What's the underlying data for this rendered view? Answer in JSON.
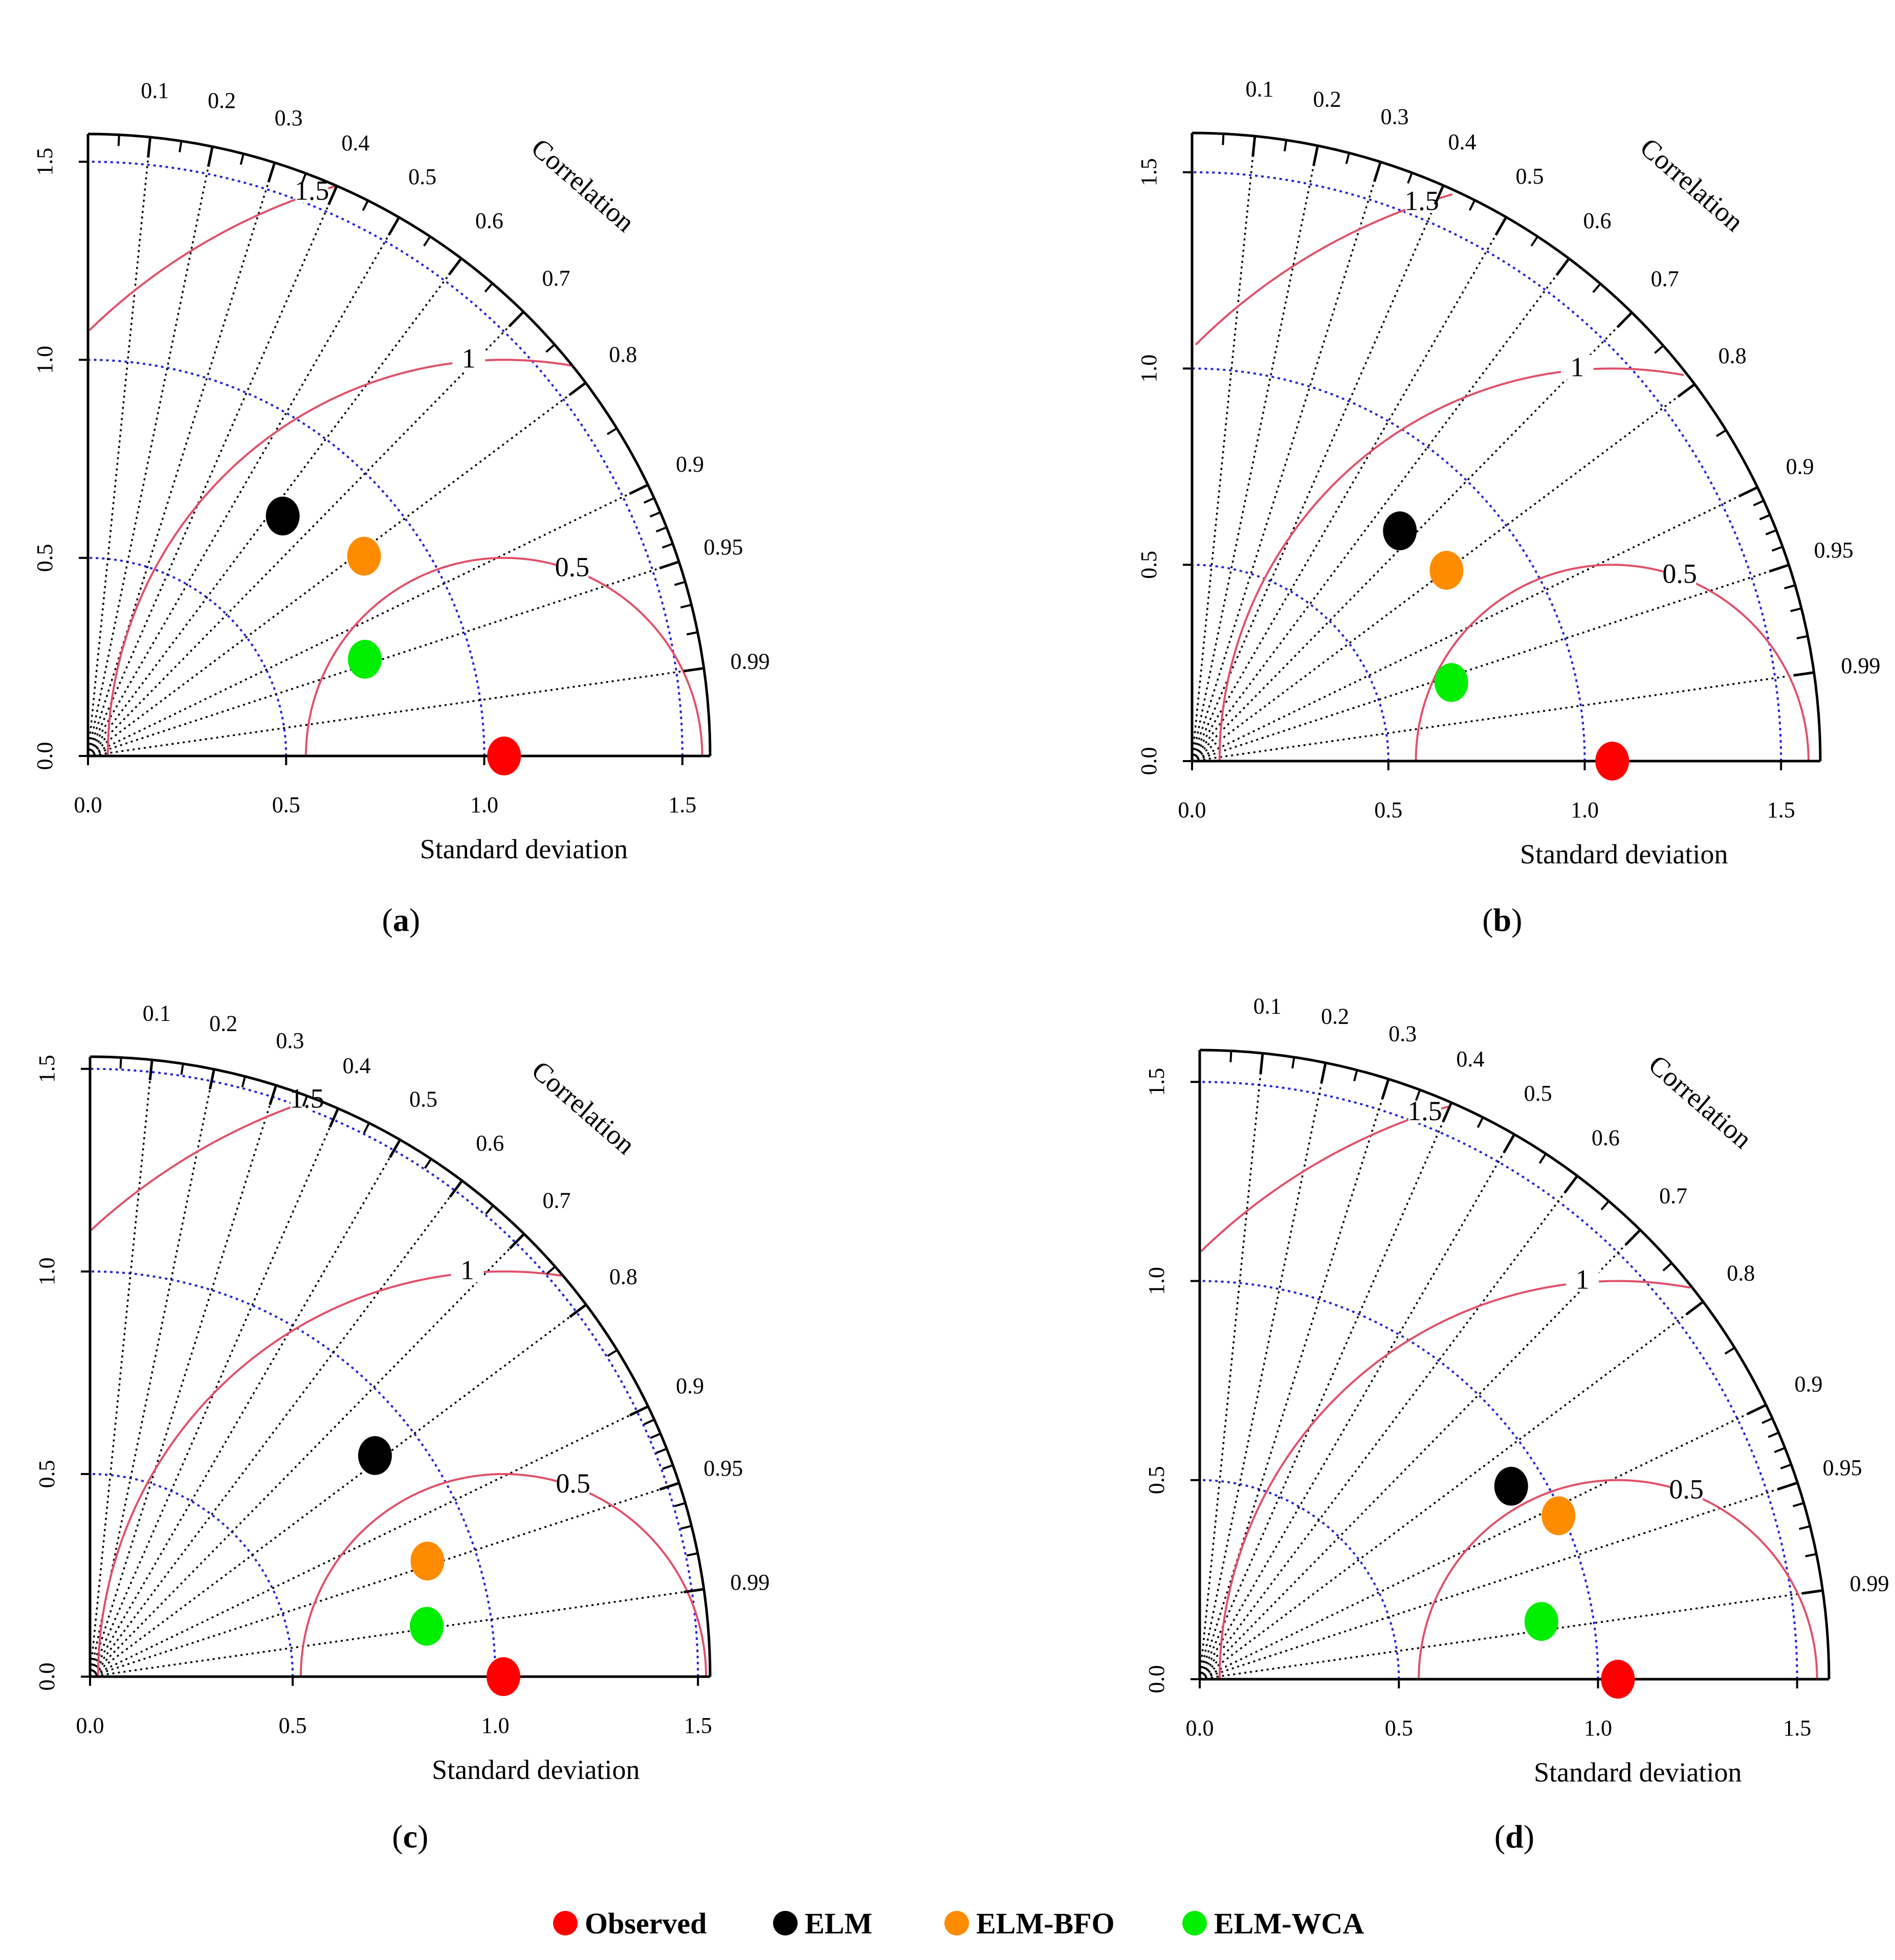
{
  "colors": {
    "observed": "#ff0000",
    "elm": "#000000",
    "elm_bfo": "#ff8c00",
    "elm_wca": "#00ee00",
    "sd_arcs": "#2222dd",
    "rms_arcs": "#e0506a",
    "corr_rays": "#000000"
  },
  "legend": {
    "items": [
      {
        "key": "observed",
        "label": "Observed"
      },
      {
        "key": "elm",
        "label": "ELM"
      },
      {
        "key": "elm_bfo",
        "label": "ELM-BFO"
      },
      {
        "key": "elm_wca",
        "label": "ELM-WCA"
      }
    ]
  },
  "chart_data": [
    {
      "type": "taylor-diagram",
      "caption": "(a)",
      "caption_letter": "a",
      "xlabel": "Standard deviation",
      "corr_label": "Correlation",
      "sd_ticks": [
        "0.0",
        "0.5",
        "1.0",
        "1.5"
      ],
      "sd_tick_values": [
        0,
        0.5,
        1.0,
        1.5
      ],
      "sd_max": 1.57,
      "sd_arcs": [
        0.5,
        1.0,
        1.5
      ],
      "ref_sd": 1.05,
      "rms_arcs": [
        {
          "value": 0.5,
          "label": "0.5"
        },
        {
          "value": 1.0,
          "label": "1"
        },
        {
          "value": 1.5,
          "label": "1.5"
        }
      ],
      "corr_ticks": [
        "0.1",
        "0.2",
        "0.3",
        "0.4",
        "0.5",
        "0.6",
        "0.7",
        "0.8",
        "0.9",
        "0.95",
        "0.99"
      ],
      "corr_tick_values": [
        0.1,
        0.2,
        0.3,
        0.4,
        0.5,
        0.6,
        0.7,
        0.8,
        0.9,
        0.95,
        0.99
      ],
      "points": [
        {
          "key": "observed",
          "name": "Observed",
          "sd": 1.05,
          "corr": 1.0
        },
        {
          "key": "elm",
          "name": "ELM",
          "sd": 0.78,
          "corr": 0.63
        },
        {
          "key": "elm_bfo",
          "name": "ELM-BFO",
          "sd": 0.86,
          "corr": 0.81
        },
        {
          "key": "elm_wca",
          "name": "ELM-WCA",
          "sd": 0.74,
          "corr": 0.944
        }
      ]
    },
    {
      "type": "taylor-diagram",
      "caption": "(b)",
      "caption_letter": "b",
      "xlabel": "Standard deviation",
      "corr_label": "Correlation",
      "sd_ticks": [
        "0.0",
        "0.5",
        "1.0",
        "1.5"
      ],
      "sd_tick_values": [
        0,
        0.5,
        1.0,
        1.5
      ],
      "sd_max": 1.6,
      "sd_arcs": [
        0.5,
        1.0,
        1.5
      ],
      "ref_sd": 1.07,
      "rms_arcs": [
        {
          "value": 0.5,
          "label": "0.5"
        },
        {
          "value": 1.0,
          "label": "1"
        },
        {
          "value": 1.5,
          "label": "1.5"
        }
      ],
      "corr_ticks": [
        "0.1",
        "0.2",
        "0.3",
        "0.4",
        "0.5",
        "0.6",
        "0.7",
        "0.8",
        "0.9",
        "0.95",
        "0.99"
      ],
      "corr_tick_values": [
        0.1,
        0.2,
        0.3,
        0.4,
        0.5,
        0.6,
        0.7,
        0.8,
        0.9,
        0.95,
        0.99
      ],
      "points": [
        {
          "key": "observed",
          "name": "Observed",
          "sd": 1.07,
          "corr": 1.0
        },
        {
          "key": "elm",
          "name": "ELM",
          "sd": 0.79,
          "corr": 0.67
        },
        {
          "key": "elm_bfo",
          "name": "ELM-BFO",
          "sd": 0.81,
          "corr": 0.8
        },
        {
          "key": "elm_wca",
          "name": "ELM-WCA",
          "sd": 0.69,
          "corr": 0.957
        }
      ]
    },
    {
      "type": "taylor-diagram",
      "caption": "(c)",
      "caption_letter": "c",
      "xlabel": "Standard deviation",
      "corr_label": "Correlation",
      "sd_ticks": [
        "0.0",
        "0.5",
        "1.0",
        "1.5"
      ],
      "sd_tick_values": [
        0,
        0.5,
        1.0,
        1.5
      ],
      "sd_max": 1.53,
      "sd_arcs": [
        0.5,
        1.0,
        1.5
      ],
      "ref_sd": 1.02,
      "rms_arcs": [
        {
          "value": 0.5,
          "label": "0.5"
        },
        {
          "value": 1.0,
          "label": "1"
        },
        {
          "value": 1.5,
          "label": "1.5"
        }
      ],
      "corr_ticks": [
        "0.1",
        "0.2",
        "0.3",
        "0.4",
        "0.5",
        "0.6",
        "0.7",
        "0.8",
        "0.9",
        "0.95",
        "0.99"
      ],
      "corr_tick_values": [
        0.1,
        0.2,
        0.3,
        0.4,
        0.5,
        0.6,
        0.7,
        0.8,
        0.9,
        0.95,
        0.99
      ],
      "points": [
        {
          "key": "observed",
          "name": "Observed",
          "sd": 1.02,
          "corr": 1.0
        },
        {
          "key": "elm",
          "name": "ELM",
          "sd": 0.89,
          "corr": 0.79
        },
        {
          "key": "elm_bfo",
          "name": "ELM-BFO",
          "sd": 0.88,
          "corr": 0.946
        },
        {
          "key": "elm_wca",
          "name": "ELM-WCA",
          "sd": 0.84,
          "corr": 0.989
        }
      ]
    },
    {
      "type": "taylor-diagram",
      "caption": "(d)",
      "caption_letter": "d",
      "xlabel": "Standard deviation",
      "corr_label": "Correlation",
      "sd_ticks": [
        "0.0",
        "0.5",
        "1.0",
        "1.5"
      ],
      "sd_tick_values": [
        0,
        0.5,
        1.0,
        1.5
      ],
      "sd_max": 1.58,
      "sd_arcs": [
        0.5,
        1.0,
        1.5
      ],
      "ref_sd": 1.05,
      "rms_arcs": [
        {
          "value": 0.5,
          "label": "0.5"
        },
        {
          "value": 1.0,
          "label": "1"
        },
        {
          "value": 1.5,
          "label": "1.5"
        }
      ],
      "corr_ticks": [
        "0.1",
        "0.2",
        "0.3",
        "0.4",
        "0.5",
        "0.6",
        "0.7",
        "0.8",
        "0.9",
        "0.95",
        "0.99"
      ],
      "corr_tick_values": [
        0.1,
        0.2,
        0.3,
        0.4,
        0.5,
        0.6,
        0.7,
        0.8,
        0.9,
        0.95,
        0.99
      ],
      "points": [
        {
          "key": "observed",
          "name": "Observed",
          "sd": 1.05,
          "corr": 1.0
        },
        {
          "key": "elm",
          "name": "ELM",
          "sd": 0.92,
          "corr": 0.85
        },
        {
          "key": "elm_bfo",
          "name": "ELM-BFO",
          "sd": 0.99,
          "corr": 0.91
        },
        {
          "key": "elm_wca",
          "name": "ELM-WCA",
          "sd": 0.87,
          "corr": 0.986
        }
      ]
    }
  ]
}
